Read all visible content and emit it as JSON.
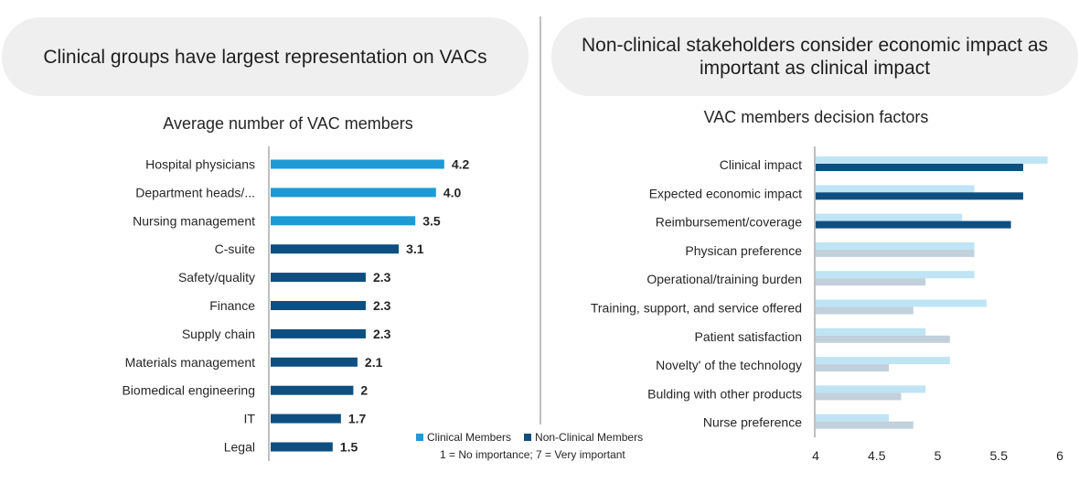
{
  "left_panel": {
    "heading": "Clinical groups have largest representation on VACs"
  },
  "right_panel": {
    "heading": "Non-clinical stakeholders consider economic impact as important as clinical impact"
  },
  "legend": {
    "clinical_label": "Clinical Members",
    "nonclinical_label": "Non-Clinical Members",
    "scale_note": "1 = No importance; 7 = Very important"
  },
  "colors": {
    "clinical_left": "#1e9ad6",
    "nonclinical_left": "#0d4f80",
    "clinical_right": "#bfe4f4",
    "nonclinical_highlight": "#0d4f80",
    "nonclinical_muted": "#c2d0dc",
    "axis": "#bfbfbf"
  },
  "chart_data": [
    {
      "type": "bar",
      "orientation": "horizontal",
      "title": "Average number of VAC members",
      "categories": [
        "Hospital physicians",
        "Department heads/...",
        "Nursing management",
        "C-suite",
        "Safety/quality",
        "Finance",
        "Supply chain",
        "Materials management",
        "Biomedical engineering",
        "IT",
        "Legal"
      ],
      "values": [
        4.2,
        4.0,
        3.5,
        3.1,
        2.3,
        2.3,
        2.3,
        2.1,
        2,
        1.7,
        1.5
      ],
      "value_labels": [
        "4.2",
        "4.0",
        "3.5",
        "3.1",
        "2.3",
        "2.3",
        "2.3",
        "2.1",
        "2",
        "1.7",
        "1.5"
      ],
      "group": [
        "Clinical Members",
        "Clinical Members",
        "Clinical Members",
        "Non-Clinical Members",
        "Non-Clinical Members",
        "Non-Clinical Members",
        "Non-Clinical Members",
        "Non-Clinical Members",
        "Non-Clinical Members",
        "Non-Clinical Members",
        "Non-Clinical Members"
      ],
      "xlim": [
        0,
        4.2
      ],
      "grid": false
    },
    {
      "type": "bar",
      "orientation": "horizontal",
      "title": "VAC members decision factors",
      "categories": [
        "Clinical impact",
        "Expected economic impact",
        "Reimbursement/coverage",
        "Physican preference",
        "Operational/training burden",
        "Training, support, and service offered",
        "Patient satisfaction",
        "Novelty' of the technology",
        "Bulding with other products",
        "Nurse preference"
      ],
      "series": [
        {
          "name": "Clinical Members",
          "values": [
            5.9,
            5.3,
            5.2,
            5.3,
            5.3,
            5.4,
            4.9,
            5.1,
            4.9,
            4.6
          ]
        },
        {
          "name": "Non-Clinical Members",
          "values": [
            5.7,
            5.7,
            5.6,
            5.3,
            4.9,
            4.8,
            5.1,
            4.6,
            4.7,
            4.8
          ]
        }
      ],
      "highlighted_nonclinical": [
        true,
        true,
        true,
        false,
        false,
        false,
        false,
        false,
        false,
        false
      ],
      "x_ticks": [
        "4",
        "4.5",
        "5",
        "5.5",
        "6"
      ],
      "xlim": [
        4,
        6
      ],
      "grid": false
    }
  ]
}
